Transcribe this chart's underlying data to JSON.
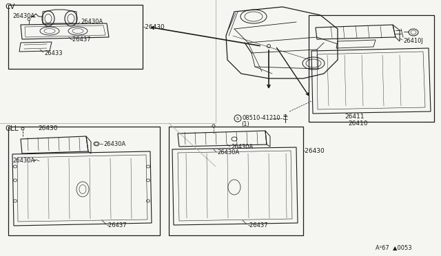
{
  "bg_color": "#f5f5f2",
  "line_color": "#1a1a1a",
  "part_labels": {
    "26430A": "26430A",
    "26437": "26437",
    "26433": "26433",
    "26430": "26430",
    "26410J": "26410J",
    "26411": "26411",
    "26410": "26410",
    "08510_41210": "08510-41210",
    "s_circle": "S",
    "one_label": "(1)"
  },
  "section_labels": {
    "CV": "CV",
    "GLL": "GLL"
  },
  "footer": "A²67  ▲0053",
  "divider_color": "#cccccc"
}
